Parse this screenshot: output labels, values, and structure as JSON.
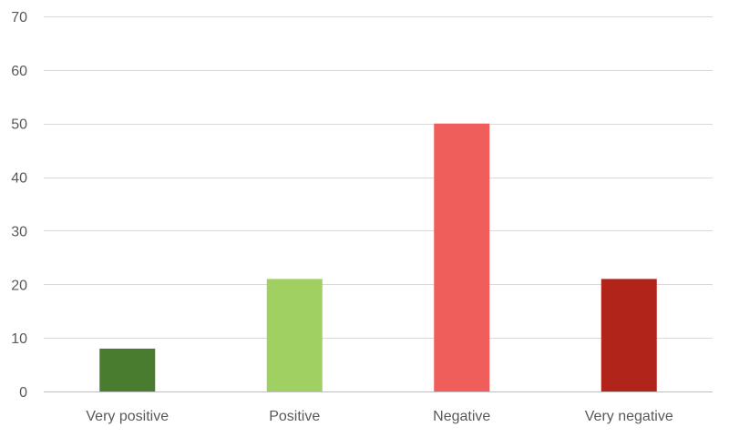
{
  "chart_data": {
    "type": "bar",
    "title": "",
    "xlabel": "",
    "ylabel": "",
    "ylim": [
      0,
      70
    ],
    "yticks": [
      0,
      10,
      20,
      30,
      40,
      50,
      60,
      70
    ],
    "grid": true,
    "legend": "none",
    "categories": [
      "Very positive",
      "Positive",
      "Negative",
      "Very negative"
    ],
    "values": [
      8,
      21,
      50,
      21
    ],
    "colors": [
      "#4a7c2f",
      "#a0d062",
      "#ef5e5a",
      "#b0241a"
    ]
  }
}
